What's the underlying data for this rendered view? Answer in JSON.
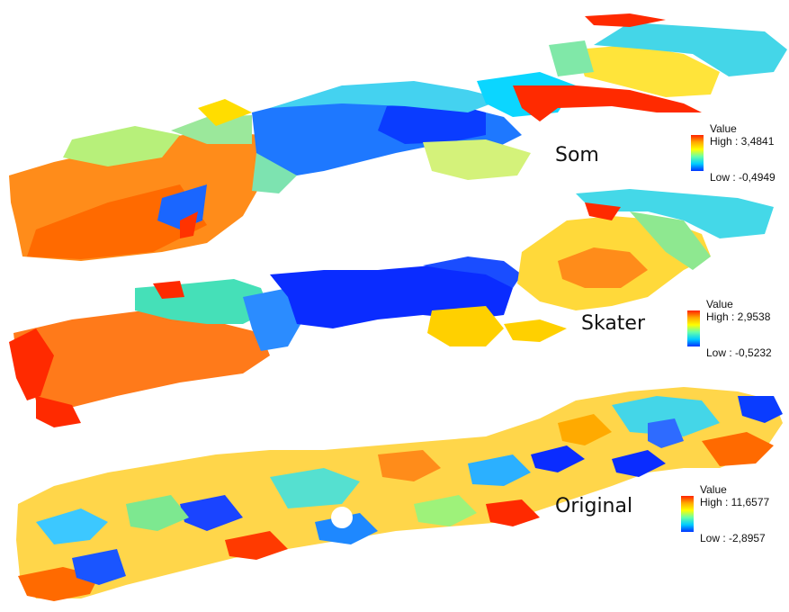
{
  "panels": [
    {
      "id": "som",
      "label": "Som",
      "legend": {
        "title": "Value",
        "high": "High : 3,4841",
        "low": "Low : -0,4949"
      }
    },
    {
      "id": "skater",
      "label": "Skater",
      "legend": {
        "title": "Value",
        "high": "High : 2,9538",
        "low": "Low : -0,5232"
      }
    },
    {
      "id": "original",
      "label": "Original",
      "legend": {
        "title": "Value",
        "high": "High : 11,6577",
        "low": "Low : -2,8957"
      }
    }
  ],
  "colors": {
    "ramp": [
      "#ff2200",
      "#ffaa00",
      "#ffff00",
      "#66ffaa",
      "#00ccff",
      "#0033ff"
    ],
    "background": "#ffffff"
  }
}
